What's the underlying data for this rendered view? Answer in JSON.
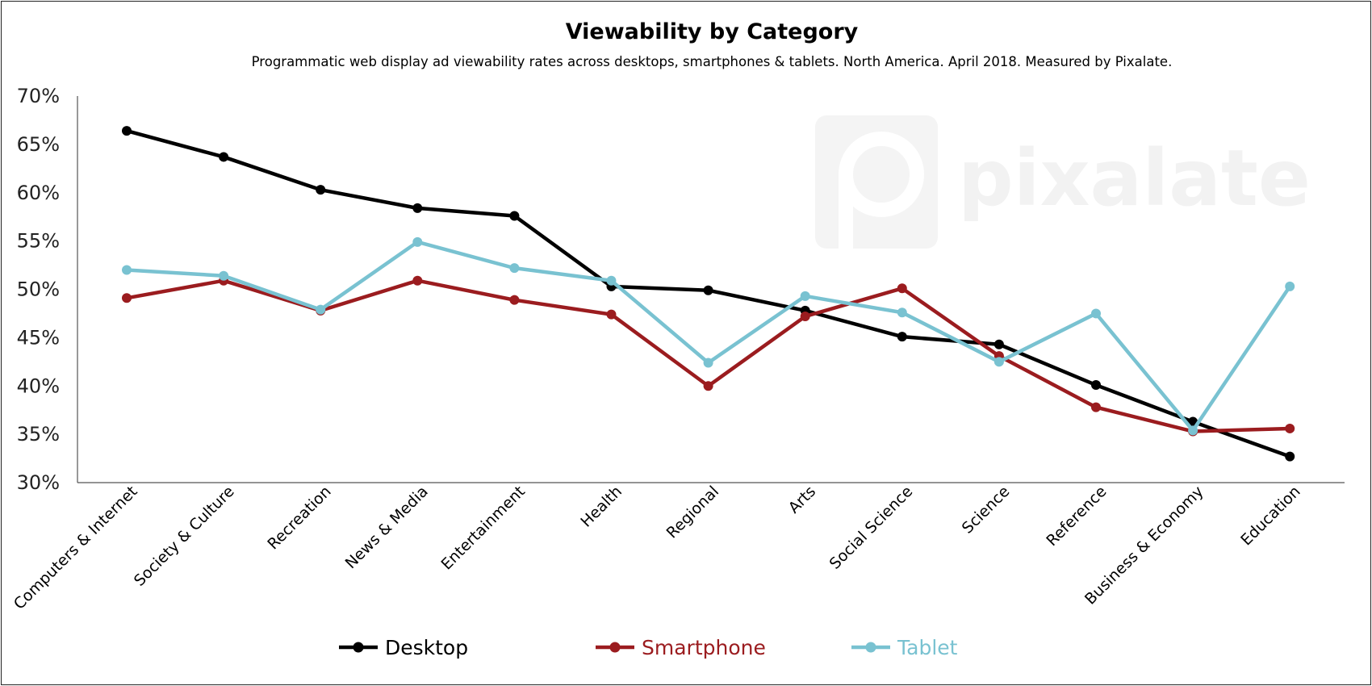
{
  "chart_data": {
    "type": "line",
    "title": "Viewability by Category",
    "subtitle": "Programmatic web display ad viewability rates across desktops, smartphones & tablets. North America. April 2018. Measured by Pixalate.",
    "watermark": "pixalate",
    "categories": [
      "Computers & Internet",
      "Society & Culture",
      "Recreation",
      "News & Media",
      "Entertainment",
      "Health",
      "Regional",
      "Arts",
      "Social Science",
      "Science",
      "Reference",
      "Business & Economy",
      "Education"
    ],
    "ylim": [
      0.3,
      0.7
    ],
    "yticks": [
      0.3,
      0.35,
      0.4,
      0.45,
      0.5,
      0.55,
      0.6,
      0.65,
      0.7
    ],
    "ytick_labels": [
      "30%",
      "35%",
      "40%",
      "45%",
      "50%",
      "55%",
      "60%",
      "65%",
      "70%"
    ],
    "grid": false,
    "legend_position": "bottom",
    "series": [
      {
        "name": "Desktop",
        "color": "#000000",
        "values": [
          0.664,
          0.637,
          0.603,
          0.584,
          0.576,
          0.503,
          0.499,
          0.478,
          0.451,
          0.443,
          0.401,
          0.363,
          0.327
        ]
      },
      {
        "name": "Smartphone",
        "color": "#9b1c1f",
        "values": [
          0.491,
          0.509,
          0.478,
          0.509,
          0.489,
          0.474,
          0.4,
          0.472,
          0.501,
          0.431,
          0.378,
          0.353,
          0.356
        ]
      },
      {
        "name": "Tablet",
        "color": "#79c2d1",
        "values": [
          0.52,
          0.514,
          0.479,
          0.549,
          0.522,
          0.509,
          0.424,
          0.493,
          0.476,
          0.425,
          0.475,
          0.354,
          0.503
        ]
      }
    ]
  }
}
